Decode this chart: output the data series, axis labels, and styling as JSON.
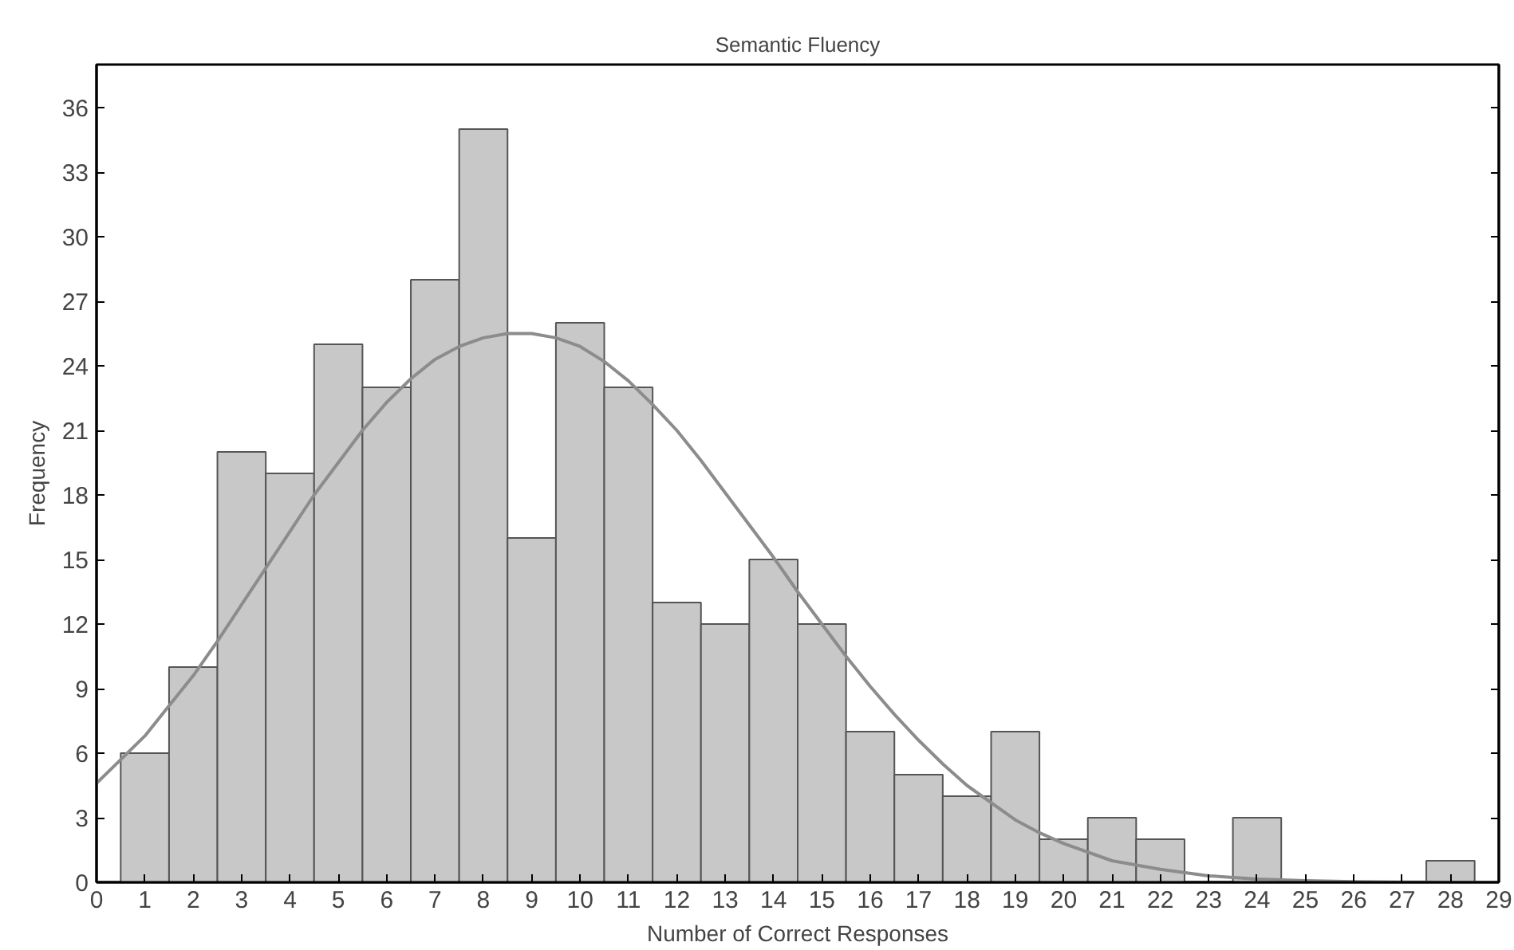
{
  "chart_data": {
    "type": "histogram",
    "title": "Semantic Fluency",
    "xlabel": "Number of Correct Responses",
    "ylabel": "Frequency",
    "bins": [
      0.5,
      1.5,
      2.5,
      3.5,
      4.5,
      5.5,
      6.5,
      7.5,
      8.5,
      9.5,
      10.5,
      11.5,
      12.5,
      13.5,
      14.5,
      15.5,
      16.5,
      17.5,
      18.5,
      19.5,
      20.5,
      21.5,
      22.5,
      23.5,
      24.5,
      25.5,
      26.5,
      27.5,
      28.5
    ],
    "values": [
      6,
      10,
      20,
      19,
      25,
      23,
      28,
      35,
      16,
      26,
      23,
      13,
      12,
      15,
      12,
      7,
      5,
      4,
      7,
      2,
      3,
      2,
      0,
      3,
      0,
      0,
      0,
      1
    ],
    "color": "#c8c8c8",
    "series": [
      {
        "type": "line",
        "color": "#8c8c8c",
        "x": [
          0,
          0.5,
          1,
          1.5,
          2,
          2.5,
          3,
          3.5,
          4,
          4.5,
          5,
          5.5,
          6,
          6.5,
          7,
          7.5,
          8,
          8.5,
          9,
          9.5,
          10,
          10.5,
          11,
          11.5,
          12,
          12.5,
          13,
          13.5,
          14,
          14.5,
          15,
          15.5,
          16,
          16.5,
          17,
          17.5,
          18,
          18.5,
          19,
          19.5,
          20,
          21,
          22,
          23,
          24,
          25,
          26,
          27,
          28,
          29
        ],
        "values": [
          4.6,
          5.7,
          6.8,
          8.2,
          9.6,
          11.2,
          12.9,
          14.6,
          16.3,
          18,
          19.5,
          21,
          22.3,
          23.4,
          24.3,
          24.9,
          25.3,
          25.5,
          25.5,
          25.3,
          24.9,
          24.2,
          23.3,
          22.2,
          21,
          19.6,
          18.1,
          16.6,
          15.1,
          13.5,
          12,
          10.5,
          9.1,
          7.8,
          6.6,
          5.5,
          4.5,
          3.7,
          2.9,
          2.3,
          1.8,
          1.0,
          0.6,
          0.3,
          0.15,
          0.07,
          0.03,
          0.01,
          0,
          0
        ]
      }
    ],
    "xlim": [
      0,
      29
    ],
    "xticks": [
      0,
      1,
      2,
      3,
      4,
      5,
      6,
      7,
      8,
      9,
      10,
      11,
      12,
      13,
      14,
      15,
      16,
      17,
      18,
      19,
      20,
      21,
      22,
      23,
      24,
      25,
      26,
      27,
      28,
      29
    ],
    "ylim": [
      0,
      38
    ],
    "yticks": [
      0,
      3,
      6,
      9,
      12,
      15,
      18,
      21,
      24,
      27,
      30,
      33,
      36
    ],
    "grid": false
  }
}
